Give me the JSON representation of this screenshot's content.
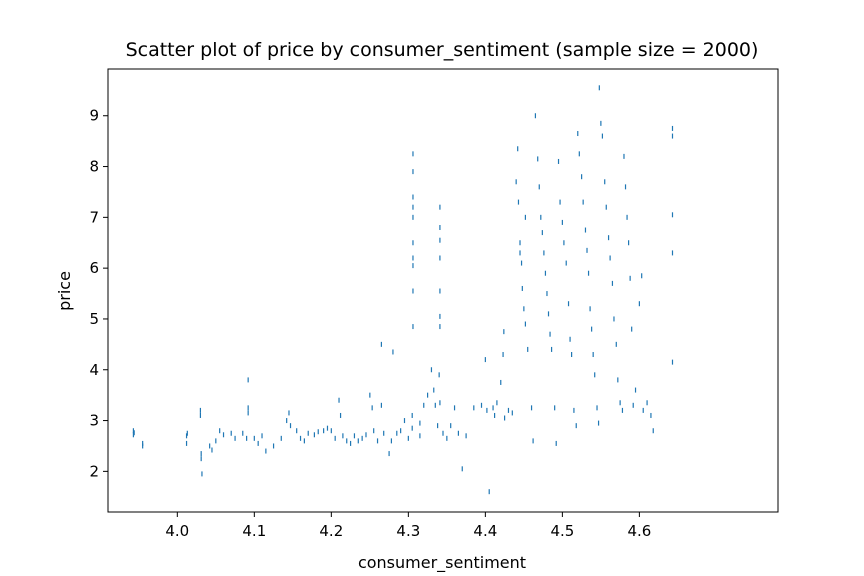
{
  "chart_data": {
    "type": "scatter",
    "title": "Scatter plot of price by consumer_sentiment (sample size = 2000)",
    "xlabel": "consumer_sentiment",
    "ylabel": "price",
    "xlim": [
      3.91,
      4.78
    ],
    "ylim": [
      1.2,
      9.92
    ],
    "xticks": [
      "4.0",
      "4.1",
      "4.2",
      "4.3",
      "4.4",
      "4.5",
      "4.6"
    ],
    "yticks": [
      "2",
      "3",
      "4",
      "5",
      "6",
      "7",
      "8",
      "9"
    ],
    "grid": false,
    "marker": "vertical-tick",
    "series": [
      {
        "color": "#1f77b4",
        "points": [
          [
            3.943,
            2.8
          ],
          [
            3.943,
            2.72
          ],
          [
            3.944,
            2.76
          ],
          [
            3.955,
            2.55
          ],
          [
            3.955,
            2.5
          ],
          [
            4.012,
            2.7
          ],
          [
            4.012,
            2.55
          ],
          [
            4.013,
            2.75
          ],
          [
            4.03,
            3.2
          ],
          [
            4.03,
            3.1
          ],
          [
            4.031,
            2.35
          ],
          [
            4.031,
            2.25
          ],
          [
            4.032,
            1.95
          ],
          [
            4.042,
            2.5
          ],
          [
            4.045,
            2.42
          ],
          [
            4.05,
            2.6
          ],
          [
            4.055,
            2.8
          ],
          [
            4.06,
            2.72
          ],
          [
            4.07,
            2.75
          ],
          [
            4.075,
            2.65
          ],
          [
            4.085,
            2.75
          ],
          [
            4.09,
            2.65
          ],
          [
            4.092,
            3.25
          ],
          [
            4.092,
            3.15
          ],
          [
            4.092,
            3.8
          ],
          [
            4.1,
            2.65
          ],
          [
            4.105,
            2.55
          ],
          [
            4.11,
            2.7
          ],
          [
            4.115,
            2.4
          ],
          [
            4.125,
            2.5
          ],
          [
            4.135,
            2.65
          ],
          [
            4.142,
            3.0
          ],
          [
            4.145,
            3.15
          ],
          [
            4.147,
            2.9
          ],
          [
            4.155,
            2.8
          ],
          [
            4.16,
            2.65
          ],
          [
            4.165,
            2.6
          ],
          [
            4.17,
            2.75
          ],
          [
            4.178,
            2.72
          ],
          [
            4.183,
            2.78
          ],
          [
            4.19,
            2.8
          ],
          [
            4.195,
            2.85
          ],
          [
            4.2,
            2.8
          ],
          [
            4.205,
            2.65
          ],
          [
            4.21,
            3.4
          ],
          [
            4.212,
            3.1
          ],
          [
            4.215,
            2.7
          ],
          [
            4.22,
            2.6
          ],
          [
            4.225,
            2.55
          ],
          [
            4.23,
            2.7
          ],
          [
            4.235,
            2.6
          ],
          [
            4.24,
            2.65
          ],
          [
            4.245,
            2.72
          ],
          [
            4.25,
            3.5
          ],
          [
            4.253,
            3.25
          ],
          [
            4.255,
            2.8
          ],
          [
            4.26,
            2.6
          ],
          [
            4.265,
            3.3
          ],
          [
            4.268,
            2.75
          ],
          [
            4.265,
            4.5
          ],
          [
            4.275,
            2.35
          ],
          [
            4.278,
            2.6
          ],
          [
            4.28,
            4.35
          ],
          [
            4.285,
            2.75
          ],
          [
            4.29,
            2.8
          ],
          [
            4.295,
            3.0
          ],
          [
            4.3,
            2.65
          ],
          [
            4.305,
            2.85
          ],
          [
            4.305,
            3.1
          ],
          [
            4.306,
            4.85
          ],
          [
            4.306,
            5.55
          ],
          [
            4.306,
            6.05
          ],
          [
            4.306,
            6.2
          ],
          [
            4.306,
            6.5
          ],
          [
            4.306,
            7.0
          ],
          [
            4.306,
            7.2
          ],
          [
            4.306,
            7.4
          ],
          [
            4.306,
            7.9
          ],
          [
            4.306,
            8.25
          ],
          [
            4.315,
            2.7
          ],
          [
            4.315,
            2.95
          ],
          [
            4.32,
            3.3
          ],
          [
            4.325,
            3.5
          ],
          [
            4.33,
            4.0
          ],
          [
            4.333,
            3.6
          ],
          [
            4.335,
            3.3
          ],
          [
            4.338,
            2.9
          ],
          [
            4.34,
            3.9
          ],
          [
            4.341,
            4.85
          ],
          [
            4.341,
            5.05
          ],
          [
            4.341,
            5.55
          ],
          [
            4.341,
            6.2
          ],
          [
            4.341,
            6.55
          ],
          [
            4.341,
            6.8
          ],
          [
            4.341,
            7.2
          ],
          [
            4.341,
            3.35
          ],
          [
            4.345,
            2.75
          ],
          [
            4.35,
            2.65
          ],
          [
            4.355,
            2.9
          ],
          [
            4.36,
            3.25
          ],
          [
            4.365,
            2.75
          ],
          [
            4.37,
            2.05
          ],
          [
            4.375,
            2.7
          ],
          [
            4.385,
            3.25
          ],
          [
            4.395,
            3.3
          ],
          [
            4.4,
            4.2
          ],
          [
            4.402,
            3.2
          ],
          [
            4.405,
            1.6
          ],
          [
            4.41,
            3.25
          ],
          [
            4.412,
            3.1
          ],
          [
            4.415,
            3.35
          ],
          [
            4.42,
            3.75
          ],
          [
            4.423,
            4.3
          ],
          [
            4.424,
            4.75
          ],
          [
            4.425,
            3.05
          ],
          [
            4.43,
            3.2
          ],
          [
            4.435,
            3.15
          ],
          [
            4.44,
            7.7
          ],
          [
            4.442,
            8.35
          ],
          [
            4.443,
            7.3
          ],
          [
            4.445,
            6.5
          ],
          [
            4.447,
            6.1
          ],
          [
            4.448,
            5.6
          ],
          [
            4.45,
            5.2
          ],
          [
            4.452,
            4.9
          ],
          [
            4.455,
            4.4
          ],
          [
            4.452,
            7.0
          ],
          [
            4.445,
            6.3
          ],
          [
            4.46,
            3.25
          ],
          [
            4.462,
            2.6
          ],
          [
            4.465,
            9.0
          ],
          [
            4.468,
            8.15
          ],
          [
            4.47,
            7.6
          ],
          [
            4.472,
            7.0
          ],
          [
            4.474,
            6.7
          ],
          [
            4.476,
            6.3
          ],
          [
            4.478,
            5.9
          ],
          [
            4.48,
            5.5
          ],
          [
            4.482,
            5.1
          ],
          [
            4.484,
            4.7
          ],
          [
            4.486,
            4.4
          ],
          [
            4.49,
            3.25
          ],
          [
            4.492,
            2.55
          ],
          [
            4.495,
            8.1
          ],
          [
            4.497,
            7.3
          ],
          [
            4.5,
            6.9
          ],
          [
            4.502,
            6.5
          ],
          [
            4.505,
            6.1
          ],
          [
            4.508,
            5.3
          ],
          [
            4.51,
            4.6
          ],
          [
            4.512,
            4.3
          ],
          [
            4.515,
            3.2
          ],
          [
            4.518,
            2.9
          ],
          [
            4.52,
            8.65
          ],
          [
            4.522,
            8.25
          ],
          [
            4.525,
            7.8
          ],
          [
            4.527,
            7.3
          ],
          [
            4.53,
            6.75
          ],
          [
            4.532,
            6.35
          ],
          [
            4.534,
            5.9
          ],
          [
            4.536,
            5.2
          ],
          [
            4.538,
            4.8
          ],
          [
            4.54,
            4.3
          ],
          [
            4.542,
            3.9
          ],
          [
            4.545,
            3.25
          ],
          [
            4.547,
            2.95
          ],
          [
            4.548,
            9.55
          ],
          [
            4.55,
            8.85
          ],
          [
            4.552,
            8.6
          ],
          [
            4.555,
            7.7
          ],
          [
            4.557,
            7.2
          ],
          [
            4.56,
            6.6
          ],
          [
            4.562,
            6.2
          ],
          [
            4.565,
            5.7
          ],
          [
            4.567,
            5.0
          ],
          [
            4.57,
            4.5
          ],
          [
            4.572,
            3.8
          ],
          [
            4.575,
            3.35
          ],
          [
            4.578,
            3.2
          ],
          [
            4.58,
            8.2
          ],
          [
            4.582,
            7.6
          ],
          [
            4.584,
            7.0
          ],
          [
            4.586,
            6.5
          ],
          [
            4.588,
            5.8
          ],
          [
            4.59,
            4.8
          ],
          [
            4.592,
            3.3
          ],
          [
            4.595,
            3.6
          ],
          [
            4.6,
            5.3
          ],
          [
            4.603,
            5.85
          ],
          [
            4.605,
            3.2
          ],
          [
            4.61,
            3.35
          ],
          [
            4.615,
            3.1
          ],
          [
            4.618,
            2.8
          ],
          [
            4.643,
            8.75
          ],
          [
            4.643,
            8.6
          ],
          [
            4.643,
            7.05
          ],
          [
            4.643,
            6.3
          ],
          [
            4.643,
            4.15
          ]
        ]
      }
    ]
  }
}
